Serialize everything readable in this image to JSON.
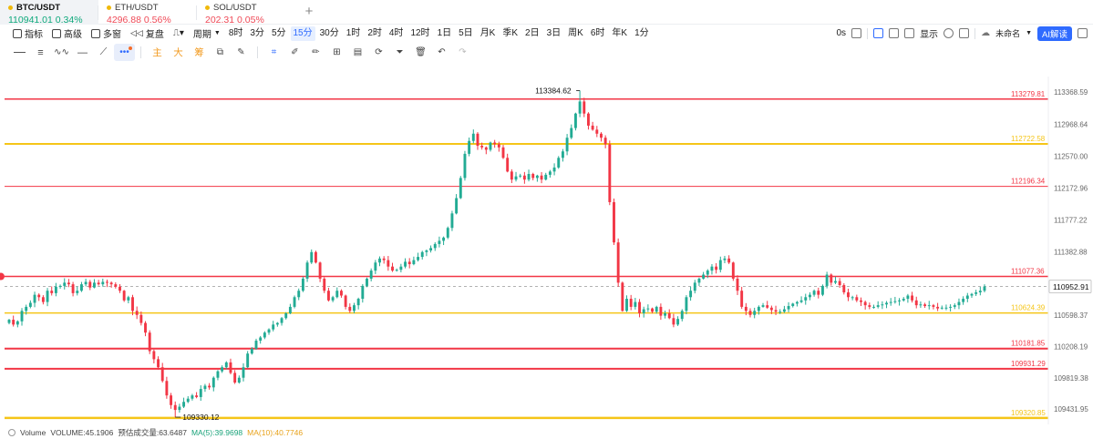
{
  "tickers": [
    {
      "symbol": "BTC/USDT",
      "price": "110941.01",
      "change": "0.34%",
      "dir": "up",
      "active": true
    },
    {
      "symbol": "ETH/USDT",
      "price": "4296.88",
      "change": "0.56%",
      "dir": "down",
      "active": false
    },
    {
      "symbol": "SOL/USDT",
      "price": "202.31",
      "change": "0.05%",
      "dir": "down",
      "active": false
    }
  ],
  "add_tab_label": "+",
  "toolbar": {
    "indicators": "指标",
    "advanced": "高级",
    "multi_chart": "多窗",
    "replay": "复盘",
    "period": "周期",
    "timeframes": [
      "8时",
      "3分",
      "5分",
      "15分",
      "30分",
      "1时",
      "2时",
      "4时",
      "12时",
      "1日",
      "5日",
      "月K",
      "季K",
      "2日",
      "3日",
      "周K",
      "6时",
      "年K",
      "1分"
    ],
    "active_timeframe": "15分",
    "countdown": "0s",
    "display": "显示",
    "layout_name": "未命名",
    "ai_button": "AI解读"
  },
  "drawing_tools": {
    "text_tools": [
      "主",
      "大",
      "筹"
    ]
  },
  "colors": {
    "up": "#22ab94",
    "down": "#f23645",
    "red_level": "#f23645",
    "yellow_level": "#f5c518",
    "accent": "#2f6bff"
  },
  "chart_data": {
    "type": "candlestick",
    "symbol": "BTC/USDT",
    "interval": "15分",
    "ylim": [
      109240,
      113560
    ],
    "price_scale_ticks": [
      "113368.59",
      "112968.64",
      "112570.00",
      "112172.96",
      "111777.22",
      "111382.88",
      "110598.37",
      "110208.19",
      "109819.38",
      "109431.95"
    ],
    "current_price": "110952.91",
    "current_price_value": 110952.91,
    "horizontal_levels": [
      {
        "price": 113279.81,
        "label": "113279.81",
        "color": "red",
        "width": 1.5
      },
      {
        "price": 112722.58,
        "label": "112722.58",
        "color": "yellow",
        "width": 2
      },
      {
        "price": 112196.34,
        "label": "112196.34",
        "color": "red",
        "width": 1
      },
      {
        "price": 111077.36,
        "label": "111077.36",
        "color": "red",
        "width": 1.5
      },
      {
        "price": 110624.39,
        "label": "110624.39",
        "color": "yellow",
        "width": 1.5
      },
      {
        "price": 110181.85,
        "label": "110181.85",
        "color": "red",
        "width": 2
      },
      {
        "price": 109931.29,
        "label": "109931.29",
        "color": "red",
        "width": 2
      },
      {
        "price": 109320.85,
        "label": "109320.85",
        "color": "yellow",
        "width": 2.5
      }
    ],
    "high_marker": {
      "price": 113384.62,
      "label": "113384.62"
    },
    "low_marker": {
      "price": 109330.12,
      "label": "109330.12"
    },
    "closes": [
      110540,
      110480,
      110520,
      110650,
      110700,
      110750,
      110850,
      110820,
      110760,
      110900,
      110870,
      110950,
      110960,
      111000,
      110980,
      110870,
      110900,
      110980,
      111010,
      110940,
      111000,
      110980,
      111010,
      111000,
      110980,
      110950,
      110900,
      110780,
      110820,
      110650,
      110600,
      110500,
      110380,
      110150,
      110050,
      109950,
      109780,
      109600,
      109480,
      109420,
      109460,
      109520,
      109560,
      109600,
      109580,
      109680,
      109720,
      109700,
      109820,
      109900,
      109950,
      110010,
      109880,
      109760,
      109820,
      109950,
      110120,
      110180,
      110280,
      110320,
      110380,
      110420,
      110480,
      110500,
      110560,
      110620,
      110700,
      110820,
      110900,
      111050,
      111250,
      111380,
      111250,
      111050,
      110900,
      110780,
      110820,
      110900,
      110840,
      110700,
      110650,
      110720,
      110800,
      110960,
      111050,
      111150,
      111250,
      111300,
      111280,
      111200,
      111150,
      111160,
      111200,
      111260,
      111230,
      111280,
      111320,
      111380,
      111400,
      111430,
      111480,
      111520,
      111560,
      111680,
      111860,
      112050,
      112300,
      112600,
      112760,
      112850,
      112700,
      112680,
      112650,
      112740,
      112720,
      112680,
      112550,
      112380,
      112280,
      112320,
      112330,
      112280,
      112350,
      112300,
      112330,
      112280,
      112340,
      112380,
      112430,
      112550,
      112630,
      112800,
      112920,
      113100,
      113250,
      113100,
      112950,
      112900,
      112850,
      112800,
      112720,
      112000,
      111500,
      111000,
      110650,
      110800,
      110700,
      110760,
      110620,
      110670,
      110680,
      110640,
      110700,
      110590,
      110620,
      110560,
      110480,
      110550,
      110650,
      110820,
      110900,
      111000,
      111050,
      111100,
      111150,
      111200,
      111160,
      111280,
      111300,
      111250,
      111050,
      110900,
      110700,
      110650,
      110600,
      110650,
      110700,
      110720,
      110690,
      110660,
      110640,
      110640,
      110670,
      110710,
      110740,
      110760,
      110780,
      110820,
      110850,
      110900,
      110850,
      110960,
      111100,
      111000,
      111020,
      110970,
      110880,
      110820,
      110820,
      110780,
      110760,
      110720,
      110700,
      110700,
      110720,
      110730,
      110750,
      110760,
      110770,
      110780,
      110800,
      110840,
      110780,
      110720,
      110730,
      110710,
      110720,
      110700,
      110680,
      110690,
      110690,
      110700,
      110720,
      110760,
      110800,
      110840,
      110860,
      110880,
      110900,
      110952
    ]
  },
  "volume": {
    "label": "Volume",
    "volume_text": "VOLUME:45.1906",
    "predicted_text": "预估成交量:63.6487",
    "ma5_text": "MA(5):39.9698",
    "ma10_text": "MA(10):40.7746"
  }
}
